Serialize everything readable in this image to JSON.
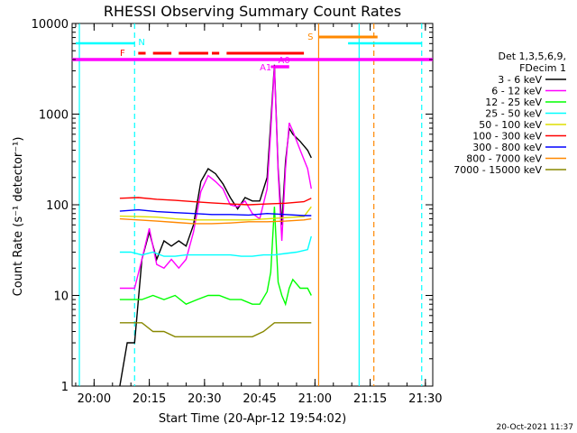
{
  "chart_data": {
    "type": "line",
    "title": "RHESSI Observing Summary Count Rates",
    "xlabel": "Start Time (20-Apr-12 19:54:02)",
    "ylabel": "Count Rate (s⁻¹ detector⁻¹)",
    "yscale": "log",
    "ylim": [
      1,
      10000
    ],
    "xlim": [
      "19:54:02",
      "21:32:00"
    ],
    "x_ticks": [
      "20:00",
      "20:15",
      "20:30",
      "20:45",
      "21:00",
      "21:15",
      "21:30"
    ],
    "y_ticks": [
      "1",
      "10",
      "100",
      "1000",
      "10000"
    ],
    "timestamp": "20-Oct-2021 11:37",
    "legend": {
      "position": "right",
      "header": [
        "Det 1,3,5,6,9,",
        "FDecim 1"
      ],
      "items": [
        {
          "label": "3 - 6 keV",
          "color": "#000000"
        },
        {
          "label": "6 - 12 keV",
          "color": "#ff00ff"
        },
        {
          "label": "12 - 25 keV",
          "color": "#00ff00"
        },
        {
          "label": "25 - 50 keV",
          "color": "#00ffff"
        },
        {
          "label": "50 - 100 keV",
          "color": "#dddd00"
        },
        {
          "label": "100 - 300 keV",
          "color": "#ff0000"
        },
        {
          "label": "300 - 800 keV",
          "color": "#0000ff"
        },
        {
          "label": "800 - 7000 keV",
          "color": "#ff8800"
        },
        {
          "label": "7000 - 15000 keV",
          "color": "#888800"
        }
      ]
    },
    "state_bars": [
      {
        "label": "N",
        "color": "#00ffff",
        "segments": [
          [
            "19:55",
            "20:11"
          ],
          [
            "21:09",
            "21:29"
          ]
        ]
      },
      {
        "label": "F",
        "color": "#ff0000",
        "segments": [
          [
            "20:12",
            "20:14"
          ],
          [
            "20:16",
            "20:21"
          ],
          [
            "20:23",
            "20:31"
          ],
          [
            "20:32",
            "20:34"
          ],
          [
            "20:36",
            "20:57"
          ]
        ]
      },
      {
        "label": "S",
        "color": "#ff8800",
        "segments": [
          [
            "21:01",
            "21:17"
          ]
        ]
      },
      {
        "label": "A1",
        "color": "#ff00ff",
        "segments": [
          [
            "20:48",
            "20:49"
          ]
        ]
      },
      {
        "label": "A0",
        "color": "#ff00ff",
        "segments": [
          [
            "20:49",
            "20:53"
          ],
          [
            "19:54",
            "21:32"
          ]
        ]
      }
    ],
    "vertical_lines": [
      {
        "time": "19:56",
        "color": "#00ffff",
        "style": "solid"
      },
      {
        "time": "20:11",
        "color": "#00ffff",
        "style": "dashed"
      },
      {
        "time": "21:01",
        "color": "#ff8800",
        "style": "solid"
      },
      {
        "time": "21:12",
        "color": "#00ffff",
        "style": "solid"
      },
      {
        "time": "21:16",
        "color": "#ff8800",
        "style": "dashed"
      },
      {
        "time": "21:29",
        "color": "#00ffff",
        "style": "dashed"
      }
    ],
    "series": [
      {
        "name": "3 - 6 keV",
        "color": "#000000",
        "x": [
          "20:07",
          "20:09",
          "20:11",
          "20:13",
          "20:15",
          "20:17",
          "20:19",
          "20:21",
          "20:23",
          "20:25",
          "20:27",
          "20:29",
          "20:31",
          "20:33",
          "20:35",
          "20:37",
          "20:39",
          "20:41",
          "20:43",
          "20:45",
          "20:47",
          "20:48",
          "20:49",
          "20:50",
          "20:51",
          "20:52",
          "20:53",
          "20:54",
          "20:56",
          "20:58",
          "20:59"
        ],
        "values": [
          1,
          3,
          3,
          25,
          50,
          25,
          40,
          35,
          40,
          35,
          60,
          180,
          250,
          220,
          170,
          120,
          90,
          120,
          110,
          110,
          200,
          800,
          3500,
          250,
          60,
          300,
          700,
          600,
          500,
          400,
          330
        ]
      },
      {
        "name": "6 - 12 keV",
        "color": "#ff00ff",
        "x": [
          "20:07",
          "20:09",
          "20:11",
          "20:13",
          "20:15",
          "20:17",
          "20:19",
          "20:21",
          "20:23",
          "20:25",
          "20:27",
          "20:29",
          "20:31",
          "20:33",
          "20:35",
          "20:37",
          "20:39",
          "20:41",
          "20:43",
          "20:45",
          "20:47",
          "20:48",
          "20:49",
          "20:50",
          "20:51",
          "20:52",
          "20:53",
          "20:54",
          "20:56",
          "20:58",
          "20:59"
        ],
        "values": [
          12,
          12,
          12,
          25,
          55,
          22,
          20,
          25,
          20,
          25,
          50,
          140,
          210,
          180,
          150,
          100,
          95,
          110,
          80,
          70,
          150,
          650,
          3300,
          230,
          40,
          250,
          800,
          650,
          400,
          250,
          150
        ]
      },
      {
        "name": "12 - 25 keV",
        "color": "#00ff00",
        "x": [
          "20:07",
          "20:10",
          "20:13",
          "20:16",
          "20:19",
          "20:22",
          "20:25",
          "20:28",
          "20:31",
          "20:34",
          "20:37",
          "20:40",
          "20:43",
          "20:45",
          "20:47",
          "20:48",
          "20:49",
          "20:50",
          "20:51",
          "20:52",
          "20:53",
          "20:54",
          "20:56",
          "20:58",
          "20:59"
        ],
        "values": [
          9,
          9,
          9,
          10,
          9,
          10,
          8,
          9,
          10,
          10,
          9,
          9,
          8,
          8,
          11,
          18,
          95,
          14,
          10,
          8,
          12,
          15,
          12,
          12,
          10
        ]
      },
      {
        "name": "25 - 50 keV",
        "color": "#00ffff",
        "x": [
          "20:07",
          "20:10",
          "20:13",
          "20:16",
          "20:19",
          "20:22",
          "20:25",
          "20:28",
          "20:31",
          "20:34",
          "20:37",
          "20:40",
          "20:43",
          "20:46",
          "20:49",
          "20:52",
          "20:55",
          "20:58",
          "20:59"
        ],
        "values": [
          30,
          30,
          28,
          30,
          27,
          27,
          28,
          28,
          28,
          28,
          28,
          27,
          27,
          28,
          28,
          29,
          30,
          32,
          45
        ]
      },
      {
        "name": "50 - 100 keV",
        "color": "#dddd00",
        "x": [
          "20:07",
          "20:12",
          "20:17",
          "20:22",
          "20:27",
          "20:32",
          "20:37",
          "20:42",
          "20:47",
          "20:52",
          "20:57",
          "20:59"
        ],
        "values": [
          75,
          74,
          73,
          70,
          68,
          68,
          68,
          68,
          70,
          72,
          74,
          95
        ]
      },
      {
        "name": "100 - 300 keV",
        "color": "#ff0000",
        "x": [
          "20:07",
          "20:12",
          "20:17",
          "20:22",
          "20:27",
          "20:32",
          "20:37",
          "20:42",
          "20:47",
          "20:52",
          "20:57",
          "20:59"
        ],
        "values": [
          118,
          120,
          115,
          112,
          108,
          105,
          102,
          100,
          102,
          104,
          108,
          118
        ]
      },
      {
        "name": "300 - 800 keV",
        "color": "#0000ff",
        "x": [
          "20:07",
          "20:12",
          "20:17",
          "20:22",
          "20:27",
          "20:32",
          "20:37",
          "20:42",
          "20:47",
          "20:52",
          "20:57",
          "20:59"
        ],
        "values": [
          85,
          88,
          84,
          82,
          80,
          78,
          78,
          77,
          80,
          78,
          76,
          76
        ]
      },
      {
        "name": "800 - 7000 keV",
        "color": "#ff8800",
        "x": [
          "20:07",
          "20:12",
          "20:17",
          "20:22",
          "20:27",
          "20:32",
          "20:37",
          "20:42",
          "20:47",
          "20:52",
          "20:57",
          "20:59"
        ],
        "values": [
          70,
          68,
          66,
          64,
          62,
          62,
          63,
          65,
          65,
          66,
          68,
          70
        ]
      },
      {
        "name": "7000 - 15000 keV",
        "color": "#888800",
        "x": [
          "20:07",
          "20:10",
          "20:13",
          "20:16",
          "20:19",
          "20:22",
          "20:25",
          "20:28",
          "20:31",
          "20:34",
          "20:37",
          "20:40",
          "20:43",
          "20:46",
          "20:49",
          "20:52",
          "20:55",
          "20:58",
          "20:59"
        ],
        "values": [
          5,
          5,
          5,
          4,
          4,
          3.5,
          3.5,
          3.5,
          3.5,
          3.5,
          3.5,
          3.5,
          3.5,
          4,
          5,
          5,
          5,
          5,
          5
        ]
      }
    ]
  }
}
